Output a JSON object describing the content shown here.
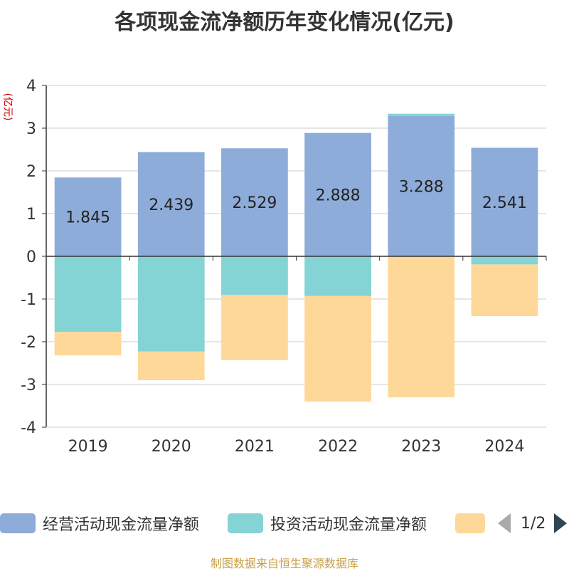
{
  "title": "各项现金流净额历年变化情况(亿元)",
  "unit_label": "(亿元)",
  "colors": {
    "operating": "#8eacd9",
    "investing": "#84d3d5",
    "financing": "#fed898",
    "axis": "#333333",
    "grid": "#cccccc",
    "label": "#222222"
  },
  "legend": {
    "items": [
      "经营活动现金流量净额",
      "投资活动现金流量净额",
      ""
    ],
    "page": "1/2"
  },
  "footer": "制图数据来自恒生聚源数据库",
  "chart_data": {
    "type": "bar",
    "stacked": true,
    "categories": [
      "2019",
      "2020",
      "2021",
      "2022",
      "2023",
      "2024"
    ],
    "ylim": [
      -4,
      4
    ],
    "yticks": [
      4,
      3,
      2,
      1,
      0,
      -1,
      -2,
      -3,
      -4
    ],
    "series": [
      {
        "name": "经营活动现金流量净额",
        "values": [
          1.845,
          2.439,
          2.529,
          2.888,
          3.288,
          2.541
        ],
        "labels": [
          "1.845",
          "2.439",
          "2.529",
          "2.888",
          "3.288",
          "2.541"
        ]
      },
      {
        "name": "投资活动现金流量净额",
        "values": [
          -1.77,
          -2.23,
          -0.9,
          -0.93,
          0.05,
          -0.19
        ]
      },
      {
        "values": [
          -0.55,
          -0.67,
          -1.53,
          -2.47,
          -3.3,
          -1.21
        ]
      }
    ],
    "grid": true
  }
}
